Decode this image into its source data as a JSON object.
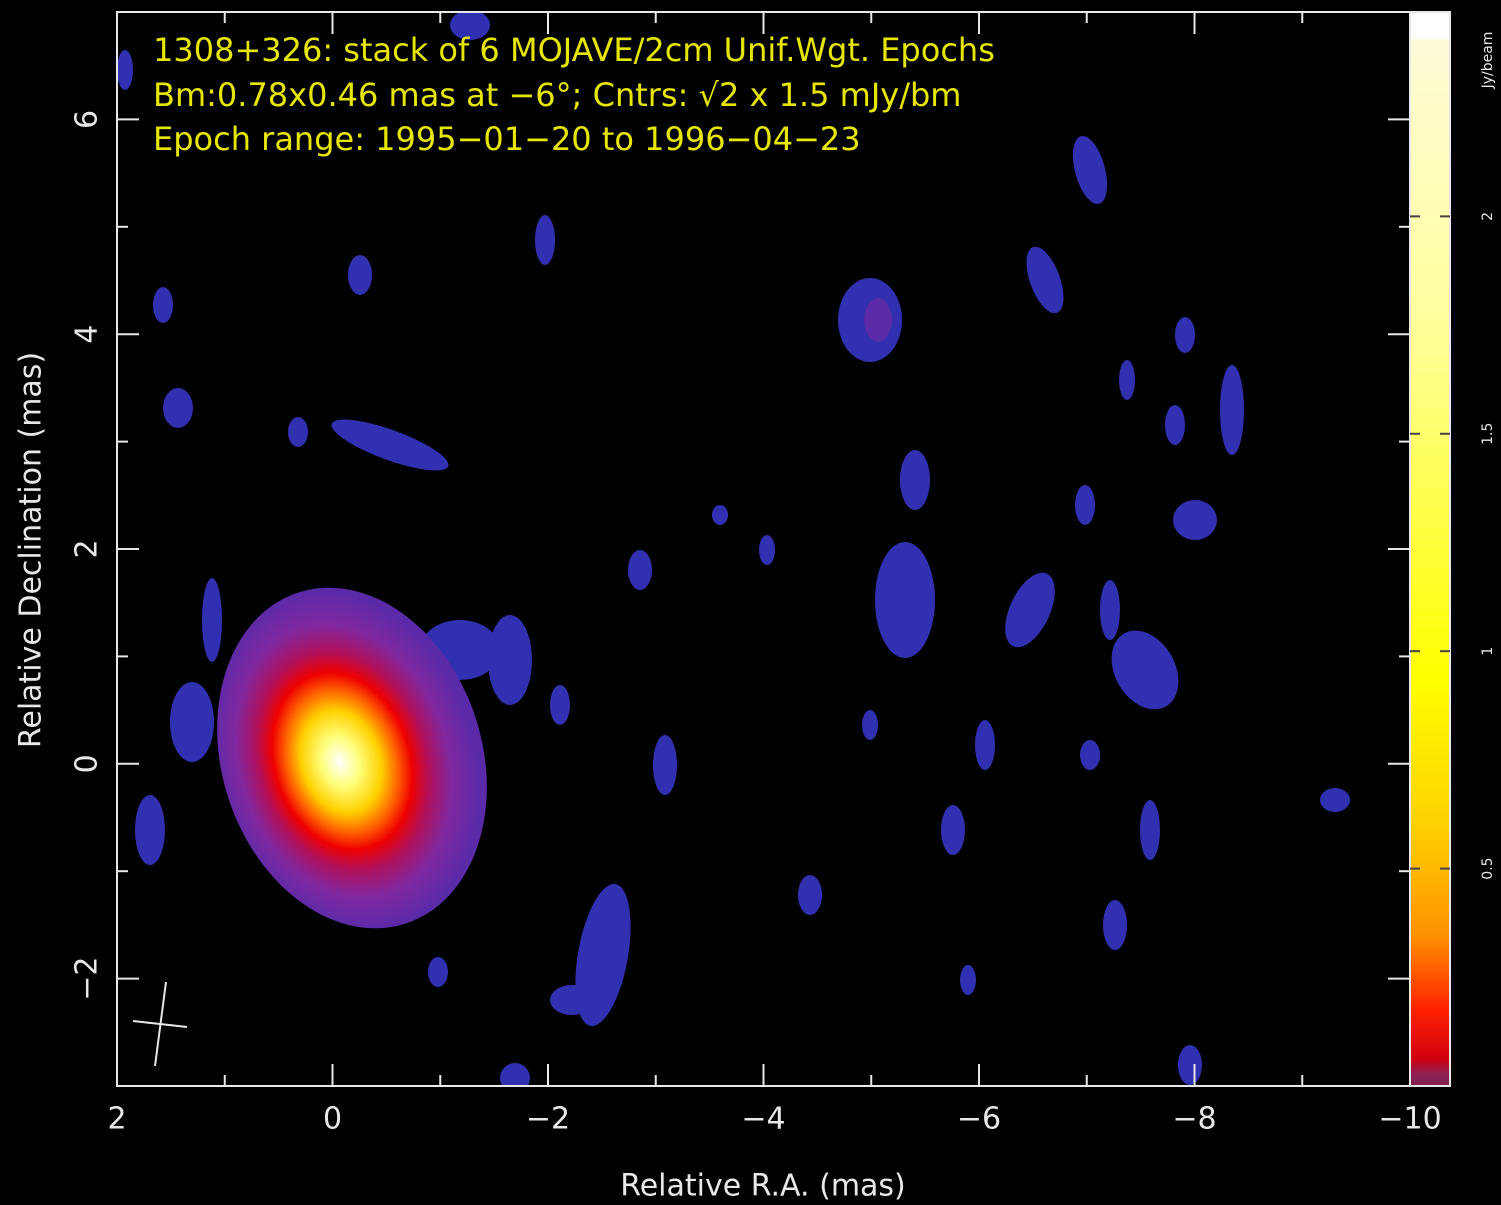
{
  "chart_data": {
    "type": "image",
    "title_lines": [
      "1308+326: stack of 6 MOJAVE/2cm Unif.Wgt. Epochs",
      "Bm:0.78x0.46 mas at −6°; Cntrs: √2 x 1.5 mJy/bm",
      "Epoch range: 1995−01−20 to 1996−04−23"
    ],
    "xlabel": "Relative R.A. (mas)",
    "ylabel": "Relative Declination (mas)",
    "xlim": [
      2,
      -10
    ],
    "ylim": [
      -3,
      7
    ],
    "xticks": [
      2,
      0,
      {
        "value": -2,
        "label": "−2"
      },
      {
        "value": -4,
        "label": "−4"
      },
      {
        "value": -6,
        "label": "−6"
      },
      {
        "value": -8,
        "label": "−8"
      },
      {
        "value": -10,
        "label": "−10"
      }
    ],
    "yticks": [
      {
        "value": -2,
        "label": "−2"
      },
      0,
      2,
      4,
      6
    ],
    "colorbar": {
      "label": "Jy/beam",
      "clim": [
        0,
        2.47
      ],
      "ticks": [
        0.5,
        1,
        1.5,
        2
      ]
    }
  }
}
